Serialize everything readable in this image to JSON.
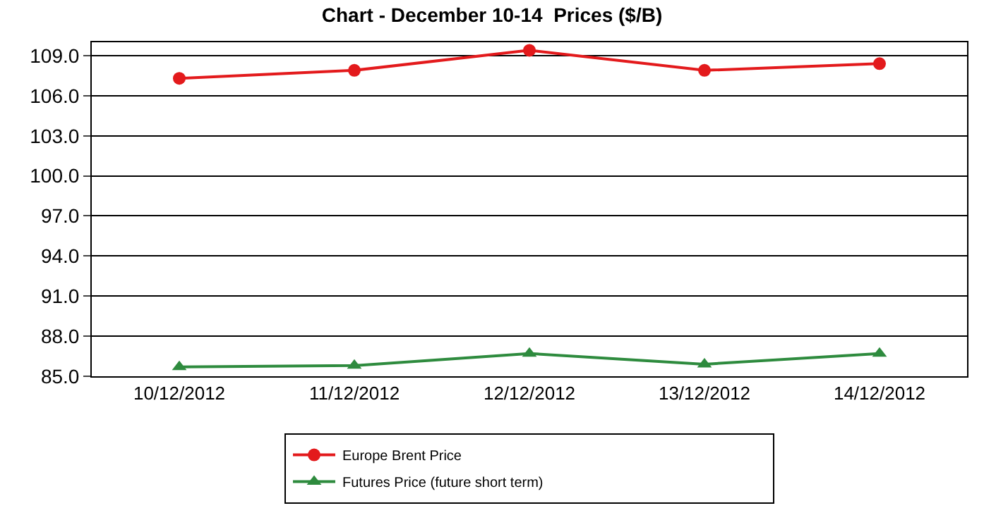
{
  "chart_data": {
    "type": "line",
    "title": "Chart - December 10-14  Prices ($/B)",
    "categories": [
      "10/12/2012",
      "11/12/2012",
      "12/12/2012",
      "13/12/2012",
      "14/12/2012"
    ],
    "series": [
      {
        "name": "Europe Brent Price",
        "color": "#e31a1c",
        "marker": "circle",
        "values": [
          107.3,
          107.9,
          109.4,
          107.9,
          108.4
        ]
      },
      {
        "name": "Futures Price (future short term)",
        "color": "#2e8b3e",
        "marker": "triangle",
        "values": [
          85.7,
          85.8,
          86.7,
          85.9,
          86.7
        ]
      }
    ],
    "ylim": [
      85.0,
      110.0
    ],
    "yticks": [
      {
        "value": 85,
        "label": "85.0"
      },
      {
        "value": 88,
        "label": "88.0"
      },
      {
        "value": 91,
        "label": "91.0"
      },
      {
        "value": 94,
        "label": "94.0"
      },
      {
        "value": 97,
        "label": "97.0"
      },
      {
        "value": 100,
        "label": "100.0"
      },
      {
        "value": 103,
        "label": "103.0"
      },
      {
        "value": 106,
        "label": "106.0"
      },
      {
        "value": 109,
        "label": "109.0"
      }
    ],
    "grid": "y",
    "legend": "bottom",
    "line_style": "solid"
  }
}
